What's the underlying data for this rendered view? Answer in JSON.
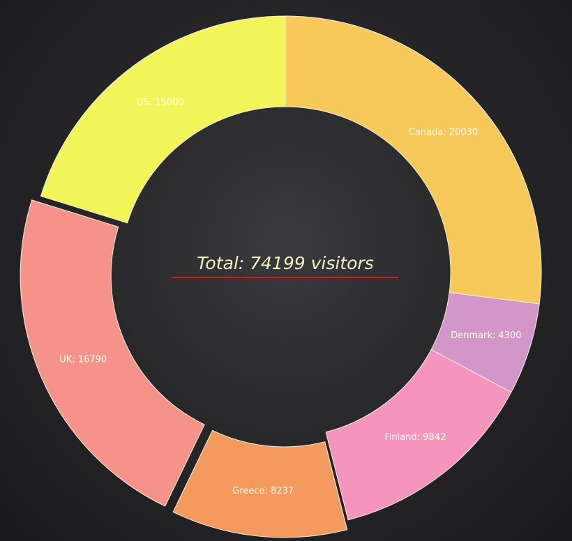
{
  "chart_data": {
    "type": "pie",
    "variant": "donut",
    "center_label": "Total: 74199 visitors",
    "slices": [
      {
        "label": "Canada: 20030",
        "category": "Canada",
        "value": 20030,
        "color": "#f7c85a",
        "exploded": false
      },
      {
        "label": "Denmark: 4300",
        "category": "Denmark",
        "value": 4300,
        "color": "#d396c8",
        "exploded": false
      },
      {
        "label": "Finland: 9842",
        "category": "Finland",
        "value": 9842,
        "color": "#f594bd",
        "exploded": false
      },
      {
        "label": "Greece: 8237",
        "category": "Greece",
        "value": 8237,
        "color": "#f59a5e",
        "exploded": true
      },
      {
        "label": "UK: 16790",
        "category": "UK",
        "value": 16790,
        "color": "#f5938a",
        "exploded": true
      },
      {
        "label": "US: 15000",
        "category": "US",
        "value": 15000,
        "color": "#f2f55a",
        "exploded": false
      }
    ],
    "underline_color": "#c81e1e"
  }
}
